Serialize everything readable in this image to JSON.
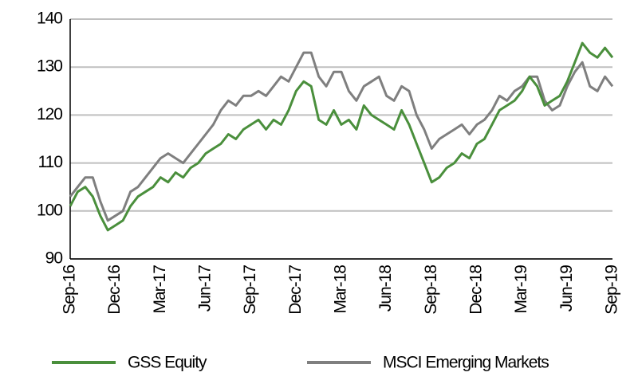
{
  "chart_data": {
    "type": "line",
    "categories": [
      "Sep-16",
      null,
      null,
      null,
      null,
      null,
      "Dec-16",
      null,
      null,
      null,
      null,
      null,
      "Mar-17",
      null,
      null,
      null,
      null,
      null,
      "Jun-17",
      null,
      null,
      null,
      null,
      null,
      "Sep-17",
      null,
      null,
      null,
      null,
      null,
      "Dec-17",
      null,
      null,
      null,
      null,
      null,
      "Mar-18",
      null,
      null,
      null,
      null,
      null,
      "Jun-18",
      null,
      null,
      null,
      null,
      null,
      "Sep-18",
      null,
      null,
      null,
      null,
      null,
      "Dec-18",
      null,
      null,
      null,
      null,
      null,
      "Mar-19",
      null,
      null,
      null,
      null,
      null,
      "Jun-19",
      null,
      null,
      null,
      null,
      null,
      "Sep-19"
    ],
    "series": [
      {
        "name": "GSS Equity",
        "color": "#4a8f3c",
        "values": [
          101,
          104,
          105,
          103,
          99,
          96,
          97,
          98,
          101,
          103,
          104,
          105,
          107,
          106,
          108,
          107,
          109,
          110,
          112,
          113,
          114,
          116,
          115,
          117,
          118,
          119,
          117,
          119,
          118,
          121,
          125,
          127,
          126,
          119,
          118,
          121,
          118,
          119,
          117,
          122,
          120,
          119,
          118,
          117,
          121,
          118,
          114,
          110,
          106,
          107,
          109,
          110,
          112,
          111,
          114,
          115,
          118,
          121,
          122,
          123,
          125,
          128,
          126,
          122,
          123,
          124,
          127,
          131,
          135,
          133,
          132,
          134,
          132
        ]
      },
      {
        "name": "MSCI Emerging Markets",
        "color": "#7f7f7f",
        "values": [
          103,
          105,
          107,
          107,
          102,
          98,
          99,
          100,
          104,
          105,
          107,
          109,
          111,
          112,
          111,
          110,
          112,
          114,
          116,
          118,
          121,
          123,
          122,
          124,
          124,
          125,
          124,
          126,
          128,
          127,
          130,
          133,
          133,
          128,
          126,
          129,
          129,
          125,
          123,
          126,
          127,
          128,
          124,
          123,
          126,
          125,
          120,
          117,
          113,
          115,
          116,
          117,
          118,
          116,
          118,
          119,
          121,
          124,
          123,
          125,
          126,
          128,
          128,
          123,
          121,
          122,
          126,
          129,
          131,
          126,
          125,
          128,
          126
        ]
      }
    ],
    "ylim": [
      90,
      140
    ],
    "yticks": [
      90,
      100,
      110,
      120,
      130,
      140
    ],
    "grid": true,
    "legend": "bottom"
  }
}
